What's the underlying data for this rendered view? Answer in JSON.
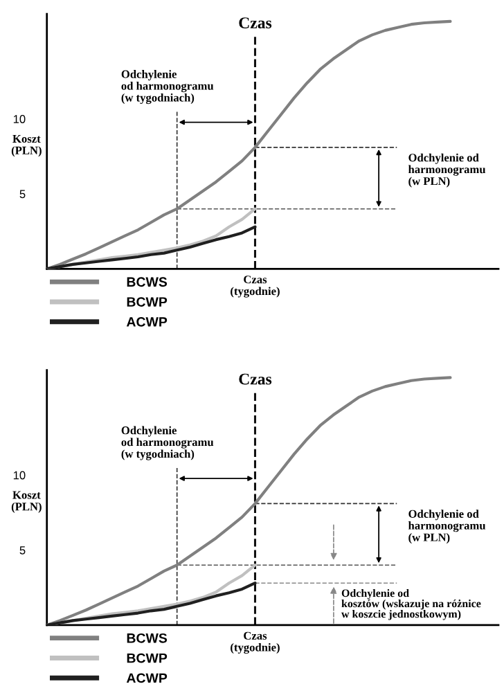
{
  "chart_data": [
    {
      "type": "line",
      "categories": [
        null,
        null,
        null,
        null,
        null,
        null,
        null,
        null,
        null,
        null,
        null,
        null,
        null,
        null,
        null,
        null,
        null,
        null,
        null,
        null,
        null,
        null,
        null,
        null,
        null,
        null,
        null,
        null,
        null,
        null,
        null,
        null,
        null,
        null,
        null
      ],
      "title": "Czas",
      "xlabel": "Czas\n(tygodnie)",
      "ylabel": "Koszt\n(PLN)",
      "ylim": [
        0,
        17
      ],
      "yticks": [
        5,
        10
      ],
      "tick_labels": "y",
      "grid": false,
      "legend": "bottom left",
      "line_style": "solid",
      "marker": "none",
      "series": [
        {
          "name": "BCWS",
          "color": "#808080",
          "values": [
            0,
            0.3,
            0.65,
            1.0,
            1.4,
            1.8,
            2.2,
            2.6,
            3.1,
            3.6,
            4.0,
            4.6,
            5.2,
            5.8,
            6.5,
            7.2,
            8.1,
            9.2,
            10.3,
            11.4,
            12.4,
            13.3,
            14.0,
            14.6,
            15.2,
            15.6,
            15.9,
            16.1,
            16.3,
            16.4,
            16.45,
            16.5,
            null,
            null,
            null
          ]
        },
        {
          "name": "BCWP",
          "color": "#c0c0c0",
          "values": [
            0,
            0.15,
            0.3,
            0.45,
            0.6,
            0.75,
            0.85,
            0.95,
            1.1,
            1.25,
            1.4,
            1.6,
            1.85,
            2.2,
            2.8,
            3.3,
            4.0,
            null,
            null,
            null,
            null,
            null,
            null,
            null,
            null,
            null,
            null,
            null,
            null,
            null,
            null,
            null,
            null,
            null,
            null
          ]
        },
        {
          "name": "ACWP",
          "color": "#202020",
          "values": [
            0,
            0.15,
            0.3,
            0.4,
            0.5,
            0.6,
            0.7,
            0.8,
            0.95,
            1.05,
            1.25,
            1.45,
            1.7,
            1.95,
            2.15,
            2.4,
            2.8,
            null,
            null,
            null,
            null,
            null,
            null,
            null,
            null,
            null,
            null,
            null,
            null,
            null,
            null,
            null,
            null,
            null,
            null
          ]
        }
      ],
      "ref_lines": [
        {
          "axis": "y",
          "value": 8.1,
          "color": "#333333",
          "line_style": "dashed"
        },
        {
          "axis": "y",
          "value": 4.0,
          "color": "#555555",
          "line_style": "dashed"
        }
      ],
      "annotations": [
        "Odchylenie\nod harmonogramu\n(w tygodniach)",
        "Odchylenie od\nharmonogramu\n(w PLN)"
      ]
    },
    {
      "type": "line",
      "categories": [
        null,
        null,
        null,
        null,
        null,
        null,
        null,
        null,
        null,
        null,
        null,
        null,
        null,
        null,
        null,
        null,
        null,
        null,
        null,
        null,
        null,
        null,
        null,
        null,
        null,
        null,
        null,
        null,
        null,
        null,
        null,
        null,
        null,
        null,
        null
      ],
      "title": "Czas",
      "xlabel": "Czas\n(tygodnie)",
      "ylabel": "Koszt\n(PLN)",
      "ylim": [
        0,
        17
      ],
      "yticks": [
        5,
        10
      ],
      "tick_labels": "y",
      "grid": false,
      "legend": "bottom left",
      "line_style": "solid",
      "marker": "none",
      "series": [
        {
          "name": "BCWS",
          "color": "#808080",
          "values": [
            0,
            0.3,
            0.65,
            1.0,
            1.4,
            1.8,
            2.2,
            2.6,
            3.1,
            3.6,
            4.0,
            4.6,
            5.2,
            5.8,
            6.5,
            7.2,
            8.1,
            9.2,
            10.3,
            11.4,
            12.4,
            13.3,
            14.0,
            14.6,
            15.2,
            15.6,
            15.9,
            16.1,
            16.3,
            16.4,
            16.45,
            16.5,
            null,
            null,
            null
          ]
        },
        {
          "name": "BCWP",
          "color": "#c0c0c0",
          "values": [
            0,
            0.15,
            0.3,
            0.45,
            0.6,
            0.75,
            0.85,
            0.95,
            1.1,
            1.25,
            1.4,
            1.6,
            1.85,
            2.2,
            2.8,
            3.3,
            4.0,
            null,
            null,
            null,
            null,
            null,
            null,
            null,
            null,
            null,
            null,
            null,
            null,
            null,
            null,
            null,
            null,
            null,
            null
          ]
        },
        {
          "name": "ACWP",
          "color": "#202020",
          "values": [
            0,
            0.15,
            0.3,
            0.4,
            0.5,
            0.6,
            0.7,
            0.8,
            0.95,
            1.05,
            1.25,
            1.45,
            1.7,
            1.95,
            2.15,
            2.4,
            2.8,
            null,
            null,
            null,
            null,
            null,
            null,
            null,
            null,
            null,
            null,
            null,
            null,
            null,
            null,
            null,
            null,
            null,
            null
          ]
        }
      ],
      "ref_lines": [
        {
          "axis": "y",
          "value": 8.1,
          "color": "#333333",
          "line_style": "dashed"
        },
        {
          "axis": "y",
          "value": 4.0,
          "color": "#555555",
          "line_style": "dashed"
        },
        {
          "axis": "y",
          "value": 2.8,
          "color": "#888888",
          "line_style": "dashed"
        }
      ],
      "annotations": [
        "Odchylenie\nod harmonogramu\n(w tygodniach)",
        "Odchylenie od\nharmonogramu\n(w PLN)",
        "Odchylenie od\nkosztów (wskazuje na różnice\nw koszcie jednostkowym)"
      ]
    }
  ]
}
